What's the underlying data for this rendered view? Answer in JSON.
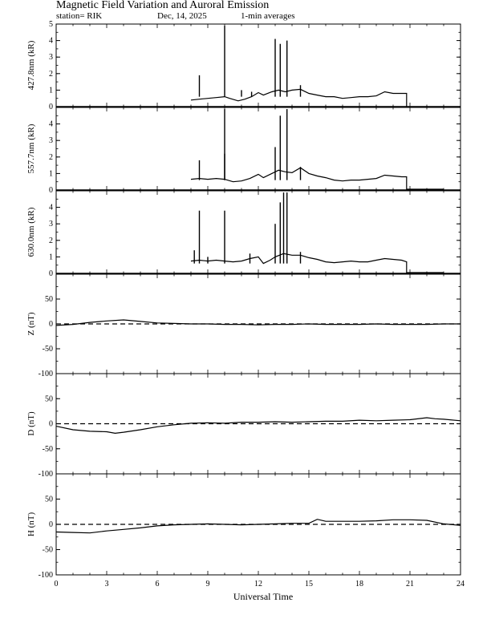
{
  "header": {
    "title": "Magnetic Field Variation and Auroral Emission",
    "station": "station= RIK",
    "date": "Dec, 14, 2025",
    "averaging": "1-min averages"
  },
  "chart_data": [
    {
      "type": "line",
      "ylabel": "427.8nm (kR)",
      "ylim": [
        0,
        5
      ],
      "yticks": [
        "0",
        "1",
        "2",
        "3",
        "4",
        "5"
      ],
      "xlim": [
        0,
        24
      ],
      "points": [
        [
          8.0,
          0.4
        ],
        [
          8.5,
          0.45
        ],
        [
          9.0,
          0.5
        ],
        [
          9.5,
          0.55
        ],
        [
          10.0,
          0.6
        ],
        [
          10.3,
          0.5
        ],
        [
          10.8,
          0.35
        ],
        [
          11.2,
          0.45
        ],
        [
          11.6,
          0.6
        ],
        [
          12.0,
          0.85
        ],
        [
          12.3,
          0.7
        ],
        [
          12.8,
          0.9
        ],
        [
          13.2,
          1.0
        ],
        [
          13.6,
          0.9
        ],
        [
          14.0,
          1.0
        ],
        [
          14.5,
          1.05
        ],
        [
          15.0,
          0.8
        ],
        [
          15.5,
          0.7
        ],
        [
          16.0,
          0.6
        ],
        [
          16.5,
          0.6
        ],
        [
          17.0,
          0.5
        ],
        [
          17.5,
          0.55
        ],
        [
          18.0,
          0.6
        ],
        [
          18.5,
          0.6
        ],
        [
          19.0,
          0.65
        ],
        [
          19.5,
          0.9
        ],
        [
          20.0,
          0.8
        ],
        [
          20.5,
          0.8
        ],
        [
          20.8,
          0.8
        ],
        [
          20.8,
          0.0
        ]
      ],
      "spikes": [
        [
          8.5,
          1.9
        ],
        [
          10.0,
          4.9
        ],
        [
          11.0,
          1.0
        ],
        [
          11.6,
          0.9
        ],
        [
          13.0,
          4.1
        ],
        [
          13.3,
          3.8
        ],
        [
          13.7,
          4.0
        ],
        [
          14.5,
          1.3
        ]
      ],
      "dashed_zero": false
    },
    {
      "type": "line",
      "ylabel": "557.7nm (kR)",
      "ylim": [
        0,
        5
      ],
      "yticks": [
        "0",
        "1",
        "2",
        "3",
        "4"
      ],
      "xlim": [
        0,
        24
      ],
      "points": [
        [
          8.0,
          0.65
        ],
        [
          8.5,
          0.7
        ],
        [
          9.0,
          0.65
        ],
        [
          9.5,
          0.7
        ],
        [
          10.0,
          0.65
        ],
        [
          10.5,
          0.5
        ],
        [
          11.0,
          0.55
        ],
        [
          11.5,
          0.7
        ],
        [
          12.0,
          0.95
        ],
        [
          12.3,
          0.75
        ],
        [
          12.8,
          1.0
        ],
        [
          13.2,
          1.2
        ],
        [
          13.6,
          1.1
        ],
        [
          14.0,
          1.05
        ],
        [
          14.5,
          1.35
        ],
        [
          15.0,
          1.0
        ],
        [
          15.5,
          0.85
        ],
        [
          16.0,
          0.75
        ],
        [
          16.5,
          0.6
        ],
        [
          17.0,
          0.55
        ],
        [
          17.5,
          0.6
        ],
        [
          18.0,
          0.6
        ],
        [
          18.5,
          0.65
        ],
        [
          19.0,
          0.7
        ],
        [
          19.5,
          0.9
        ],
        [
          20.0,
          0.85
        ],
        [
          20.5,
          0.8
        ],
        [
          20.8,
          0.8
        ],
        [
          20.8,
          0.05
        ],
        [
          23.0,
          0.05
        ]
      ],
      "spikes": [
        [
          8.5,
          1.8
        ],
        [
          10.0,
          4.9
        ],
        [
          10.0,
          2.2
        ],
        [
          13.0,
          2.6
        ],
        [
          13.3,
          4.5
        ],
        [
          13.7,
          4.9
        ],
        [
          14.5,
          1.4
        ]
      ],
      "dashed_zero": false
    },
    {
      "type": "line",
      "ylabel": "630.0nm (kR)",
      "ylim": [
        0,
        5
      ],
      "yticks": [
        "0",
        "1",
        "2",
        "3",
        "4"
      ],
      "xlim": [
        0,
        24
      ],
      "points": [
        [
          8.0,
          0.75
        ],
        [
          8.5,
          0.8
        ],
        [
          9.0,
          0.75
        ],
        [
          9.5,
          0.8
        ],
        [
          10.0,
          0.75
        ],
        [
          10.5,
          0.7
        ],
        [
          11.0,
          0.75
        ],
        [
          11.5,
          0.9
        ],
        [
          12.0,
          1.0
        ],
        [
          12.3,
          0.6
        ],
        [
          12.7,
          0.8
        ],
        [
          13.0,
          1.0
        ],
        [
          13.5,
          1.2
        ],
        [
          14.0,
          1.1
        ],
        [
          14.5,
          1.1
        ],
        [
          15.0,
          0.95
        ],
        [
          15.5,
          0.85
        ],
        [
          16.0,
          0.7
        ],
        [
          16.5,
          0.65
        ],
        [
          17.0,
          0.7
        ],
        [
          17.5,
          0.75
        ],
        [
          18.0,
          0.7
        ],
        [
          18.5,
          0.7
        ],
        [
          19.0,
          0.8
        ],
        [
          19.5,
          0.9
        ],
        [
          20.0,
          0.85
        ],
        [
          20.5,
          0.8
        ],
        [
          20.8,
          0.7
        ],
        [
          20.8,
          0.05
        ],
        [
          23.0,
          0.05
        ]
      ],
      "spikes": [
        [
          8.2,
          1.4
        ],
        [
          8.5,
          3.8
        ],
        [
          9.0,
          1.0
        ],
        [
          10.0,
          3.8
        ],
        [
          11.5,
          1.2
        ],
        [
          13.0,
          3.0
        ],
        [
          13.3,
          4.3
        ],
        [
          13.5,
          4.9
        ],
        [
          13.7,
          4.9
        ],
        [
          14.5,
          1.3
        ]
      ],
      "dashed_zero": false
    },
    {
      "type": "line",
      "ylabel": "Z (nT)",
      "ylim": [
        -100,
        100
      ],
      "yticks": [
        "-100",
        "-50",
        "0",
        "50"
      ],
      "xlim": [
        0,
        24
      ],
      "points": [
        [
          0,
          -3
        ],
        [
          1,
          -1
        ],
        [
          2,
          3
        ],
        [
          3,
          6
        ],
        [
          4,
          8
        ],
        [
          5,
          5
        ],
        [
          6,
          2
        ],
        [
          7,
          1
        ],
        [
          8,
          0
        ],
        [
          9,
          0
        ],
        [
          10,
          -1
        ],
        [
          11,
          -1
        ],
        [
          12,
          -2
        ],
        [
          13,
          -1
        ],
        [
          14,
          -1
        ],
        [
          15,
          0
        ],
        [
          16,
          -1
        ],
        [
          17,
          -1
        ],
        [
          18,
          -1
        ],
        [
          19,
          0
        ],
        [
          20,
          -1
        ],
        [
          21,
          -1
        ],
        [
          22,
          -1
        ],
        [
          23,
          0
        ],
        [
          24,
          0
        ]
      ],
      "spikes": [],
      "dashed_zero": true
    },
    {
      "type": "line",
      "ylabel": "D (nT)",
      "ylim": [
        -100,
        100
      ],
      "yticks": [
        "-100",
        "-50",
        "0",
        "50"
      ],
      "xlim": [
        0,
        24
      ],
      "points": [
        [
          0,
          -5
        ],
        [
          1,
          -12
        ],
        [
          2,
          -15
        ],
        [
          3,
          -16
        ],
        [
          3.5,
          -19
        ],
        [
          4,
          -17
        ],
        [
          5,
          -12
        ],
        [
          6,
          -6
        ],
        [
          7,
          -2
        ],
        [
          8,
          1
        ],
        [
          9,
          2
        ],
        [
          10,
          1
        ],
        [
          11,
          3
        ],
        [
          12,
          3
        ],
        [
          13,
          4
        ],
        [
          14,
          3
        ],
        [
          15,
          4
        ],
        [
          16,
          5
        ],
        [
          17,
          5
        ],
        [
          18,
          7
        ],
        [
          19,
          6
        ],
        [
          20,
          7
        ],
        [
          21,
          8
        ],
        [
          22,
          12
        ],
        [
          22.5,
          10
        ],
        [
          23,
          9
        ],
        [
          24,
          6
        ]
      ],
      "spikes": [],
      "dashed_zero": true
    },
    {
      "type": "line",
      "ylabel": "H (nT)",
      "ylim": [
        -100,
        100
      ],
      "yticks": [
        "-100",
        "-50",
        "0",
        "50"
      ],
      "xlim": [
        0,
        24
      ],
      "points": [
        [
          0,
          -15
        ],
        [
          1,
          -16
        ],
        [
          2,
          -17
        ],
        [
          3,
          -13
        ],
        [
          4,
          -10
        ],
        [
          5,
          -7
        ],
        [
          6,
          -3
        ],
        [
          7,
          -1
        ],
        [
          8,
          0
        ],
        [
          9,
          1
        ],
        [
          10,
          0
        ],
        [
          11,
          -1
        ],
        [
          12,
          0
        ],
        [
          13,
          1
        ],
        [
          14,
          2
        ],
        [
          15,
          2
        ],
        [
          15.5,
          10
        ],
        [
          16,
          6
        ],
        [
          17,
          6
        ],
        [
          18,
          6
        ],
        [
          19,
          7
        ],
        [
          20,
          9
        ],
        [
          21,
          9
        ],
        [
          22,
          8
        ],
        [
          23,
          1
        ],
        [
          24,
          -2
        ]
      ],
      "spikes": [],
      "dashed_zero": true
    }
  ],
  "xaxis": {
    "label": "Universal Time",
    "ticks": [
      "0",
      "3",
      "6",
      "9",
      "12",
      "15",
      "18",
      "21",
      "24"
    ]
  }
}
